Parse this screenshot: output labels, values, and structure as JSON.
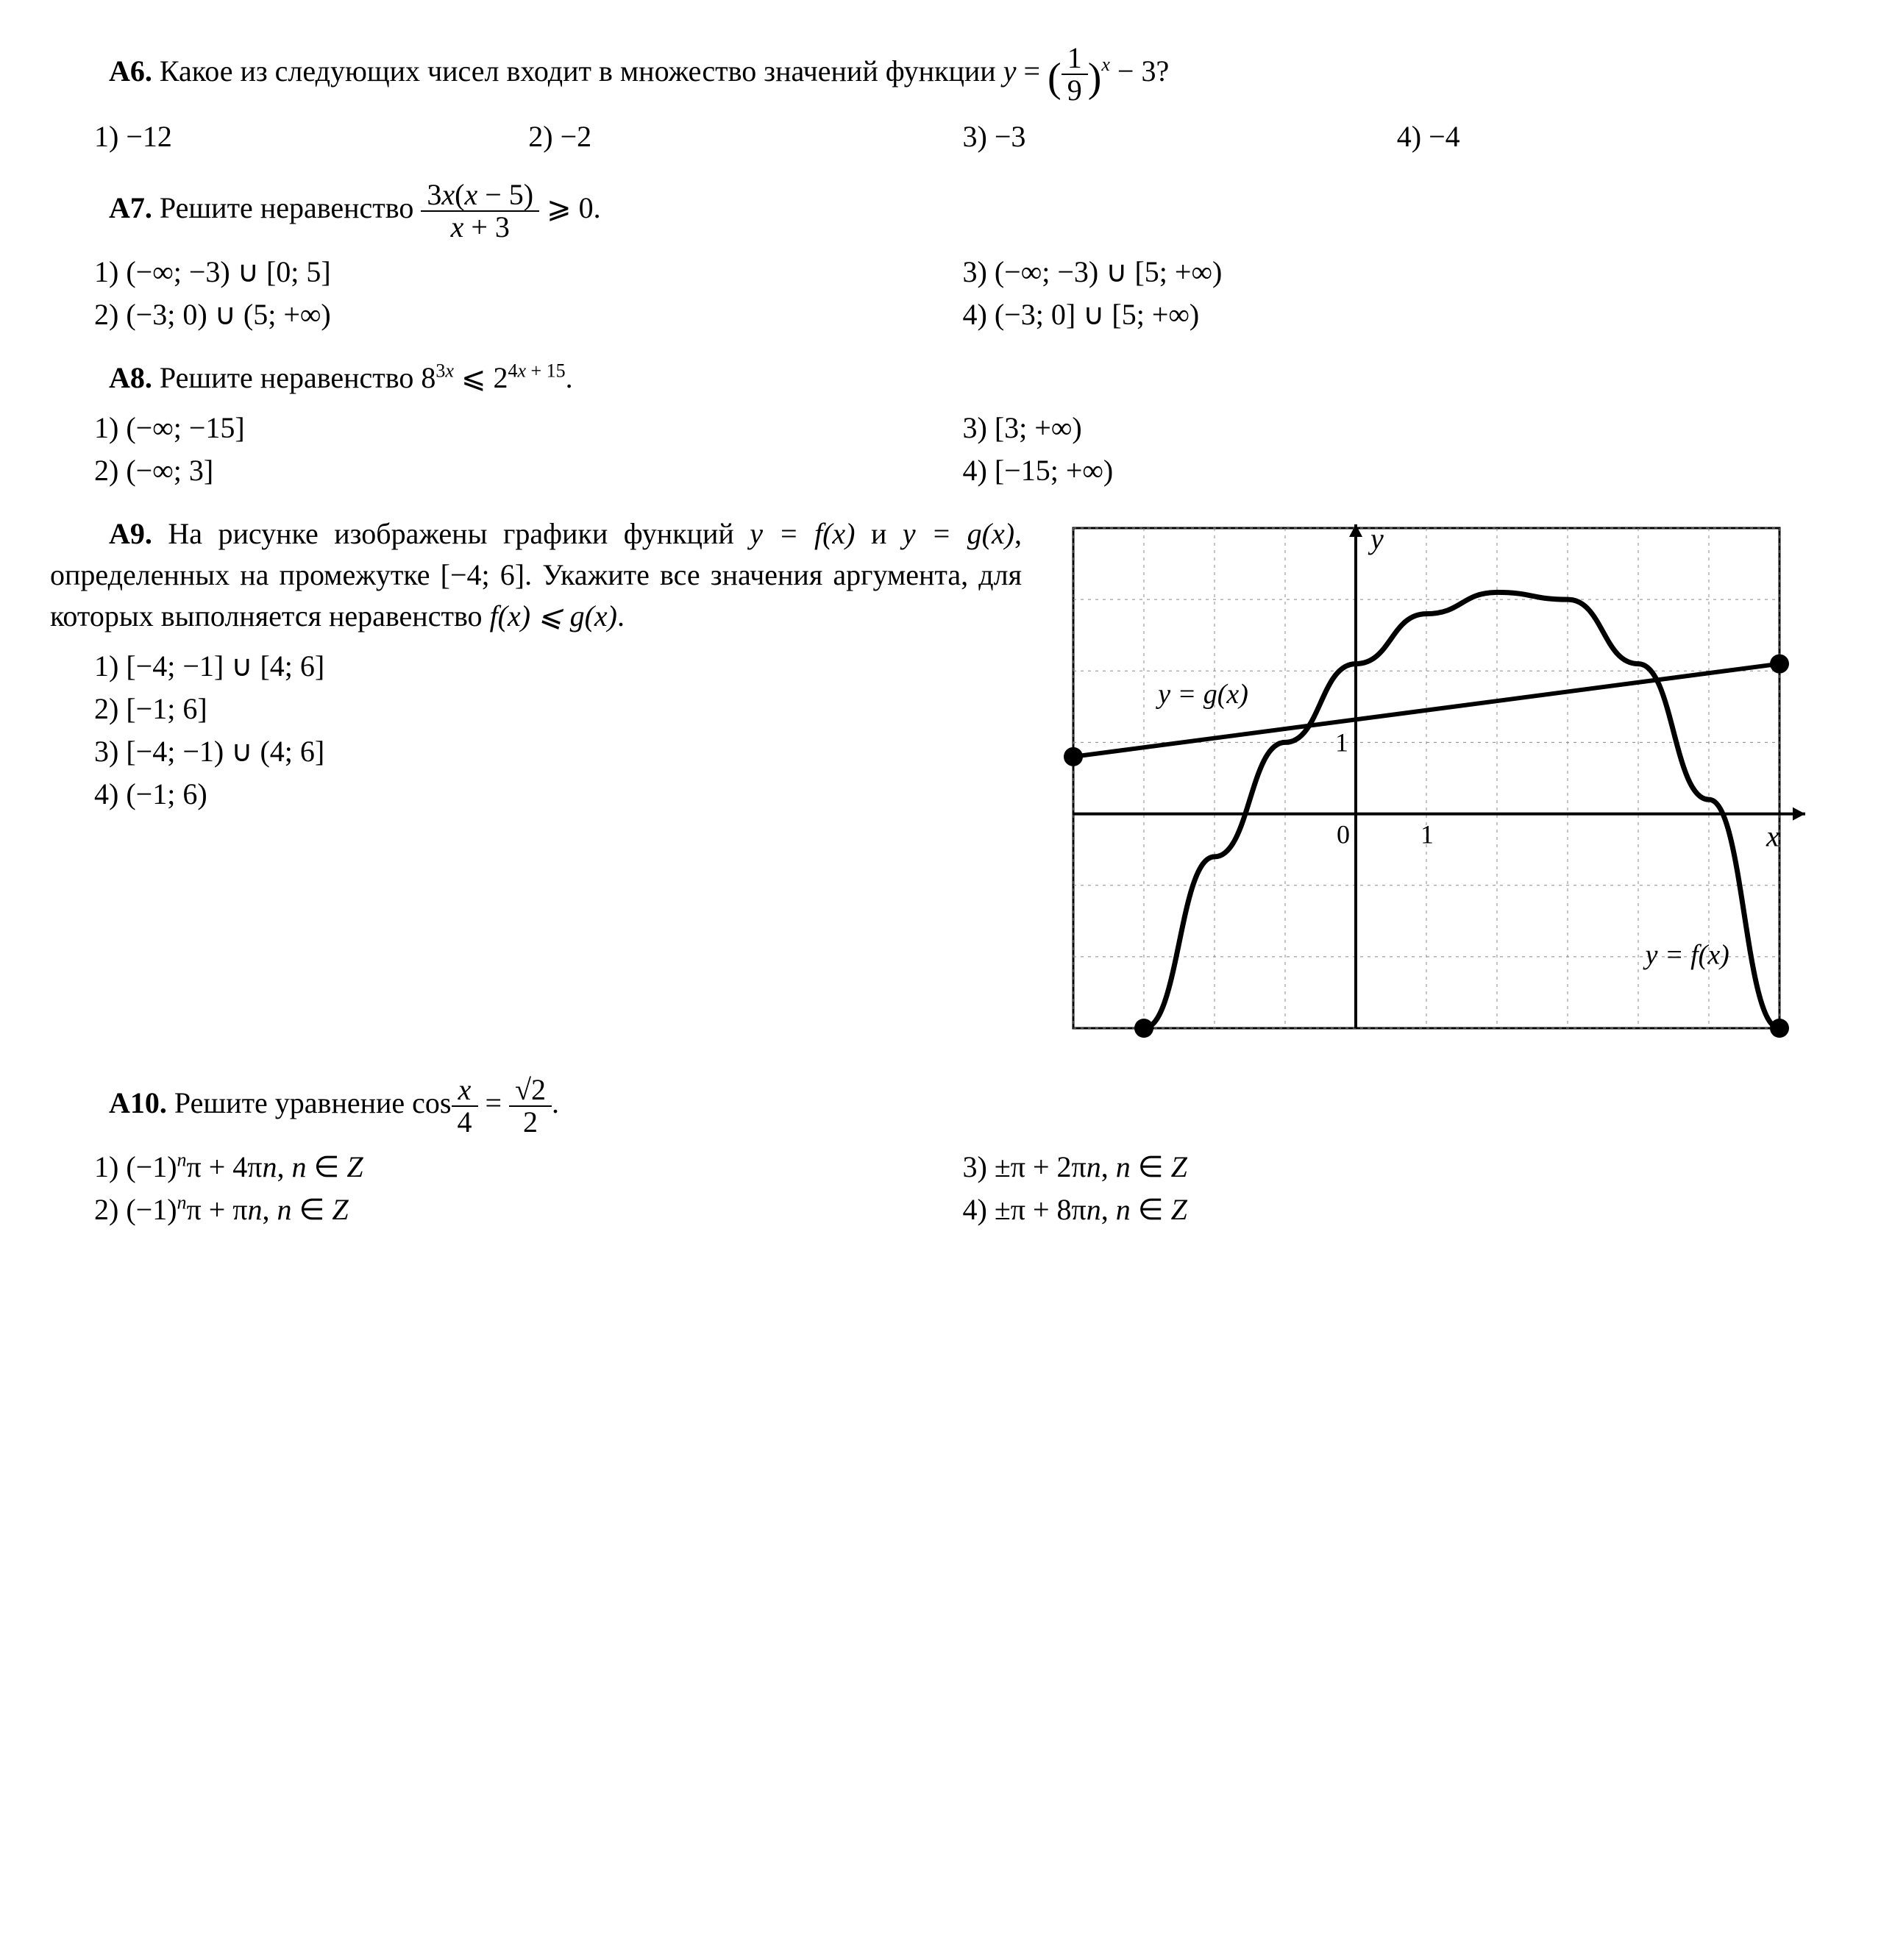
{
  "a6": {
    "label": "А6.",
    "text_pre": "Какое из следующих чисел входит в множество значений функции ",
    "eq_y": "y",
    "eq_eq": " = ",
    "frac_num": "1",
    "frac_den": "9",
    "exp": "x",
    "tail": " − 3?",
    "ans1_n": "1) ",
    "ans1_v": "−12",
    "ans2_n": "2) ",
    "ans2_v": "−2",
    "ans3_n": "3) ",
    "ans3_v": "−3",
    "ans4_n": "4) ",
    "ans4_v": "−4"
  },
  "a7": {
    "label": "А7.",
    "text": " Решите неравенство ",
    "frac_num_a": "3",
    "frac_num_b": "x",
    "frac_num_c": "(",
    "frac_num_d": "x",
    "frac_num_e": " − 5)",
    "frac_den_a": "x",
    "frac_den_b": " + 3",
    "ge": " ⩾ 0.",
    "ans1": "1) (−∞; −3) ∪ [0; 5]",
    "ans2": "2) (−3; 0) ∪ (5; +∞)",
    "ans3": "3) (−∞; −3) ∪ [5; +∞)",
    "ans4": "4) (−3; 0] ∪ [5; +∞)"
  },
  "a8": {
    "label": "А8.",
    "text": " Решите неравенство 8",
    "exp1a": "3",
    "exp1b": "x",
    "le": " ⩽ 2",
    "exp2a": "4",
    "exp2b": "x",
    "exp2c": " + 15",
    "dot": ".",
    "ans1": "1) (−∞; −15]",
    "ans2": "2) (−∞; 3]",
    "ans3": "3) [3; +∞)",
    "ans4": "4) [−15; +∞)"
  },
  "a9": {
    "label": "А9.",
    "text": " На рисунке изображены графики функций ",
    "yf": "y = f(x)",
    "and": " и ",
    "yg": "y = g(x)",
    "text2": ", определенных на промежутке [−4; 6]. Укажите все значения аргумента, для которых выполняется неравенство ",
    "ineq": "f(x) ⩽ g(x)",
    "dot": ".",
    "ans1": "1) [−4; −1] ∪ [4; 6]",
    "ans2": "2) [−1; 6]",
    "ans3": "3) [−4; −1) ∪ (4; 6]",
    "ans4": "4) (−1; 6)",
    "graph": {
      "x_min": -4,
      "x_max": 6,
      "y_min": -3,
      "y_max": 4,
      "grid_color": "#888",
      "axis_color": "#000",
      "g_label": "y = g(x)",
      "f_label": "y = f(x)",
      "y_label": "y",
      "x_label": "x",
      "one": "1",
      "zero": "0",
      "g_p1": [
        -4,
        0.8
      ],
      "g_p2": [
        6,
        2.1
      ],
      "f_points": [
        [
          -3,
          -3
        ],
        [
          -2,
          -0.6
        ],
        [
          -1,
          1
        ],
        [
          0,
          2.1
        ],
        [
          1,
          2.8
        ],
        [
          2,
          3.1
        ],
        [
          3,
          3
        ],
        [
          4,
          2.1
        ],
        [
          5,
          0.2
        ],
        [
          6,
          -3
        ]
      ],
      "f_start": [
        -3,
        -3
      ],
      "f_end": [
        6,
        -3
      ]
    }
  },
  "a10": {
    "label": "А10.",
    "text": " Решите уравнение cos",
    "frac_num": "x",
    "frac_den": "4",
    "eq": " = ",
    "frac2_num": "√2",
    "frac2_den": "2",
    "dot": ".",
    "ans1_a": "1) (−1)",
    "ans1_b": "n",
    "ans1_c": "π + 4π",
    "ans1_d": "n",
    "ans1_e": ", ",
    "ans1_f": "n",
    "ans1_g": " ∈ ",
    "ans1_h": "Z",
    "ans2_a": "2) (−1)",
    "ans2_b": "n",
    "ans2_c": "π + π",
    "ans2_d": "n",
    "ans2_e": ", ",
    "ans2_f": "n",
    "ans2_g": " ∈ ",
    "ans2_h": "Z",
    "ans3_a": "3) ±π  + 2π",
    "ans3_b": "n",
    "ans3_c": ", ",
    "ans3_d": "n",
    "ans3_e": " ∈ ",
    "ans3_f": "Z",
    "ans4_a": "4) ±π  + 8π",
    "ans4_b": "n",
    "ans4_c": ", ",
    "ans4_d": "n",
    "ans4_e": " ∈ ",
    "ans4_f": "Z"
  }
}
